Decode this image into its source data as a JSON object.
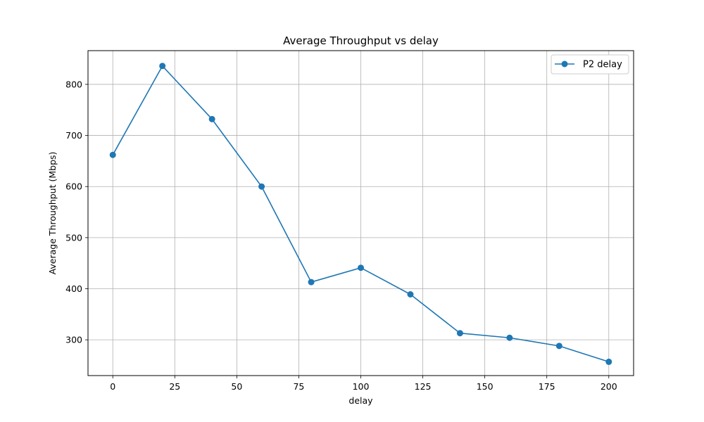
{
  "chart_data": {
    "type": "line",
    "title": "Average Throughput vs delay",
    "xlabel": "delay",
    "ylabel": "Average Throughput (Mbps)",
    "xlim": [
      -10,
      210
    ],
    "ylim": [
      230,
      866
    ],
    "xticks": [
      0,
      25,
      50,
      75,
      100,
      125,
      150,
      175,
      200
    ],
    "yticks": [
      300,
      400,
      500,
      600,
      700,
      800
    ],
    "grid": true,
    "legend_position": "top-right",
    "series": [
      {
        "name": "P2 delay",
        "color": "#1f77b4",
        "marker": "circle",
        "x": [
          0,
          20,
          40,
          60,
          80,
          100,
          120,
          140,
          160,
          180,
          200
        ],
        "y": [
          662,
          836,
          732,
          600,
          413,
          441,
          389,
          313,
          304,
          288,
          257
        ]
      }
    ]
  }
}
